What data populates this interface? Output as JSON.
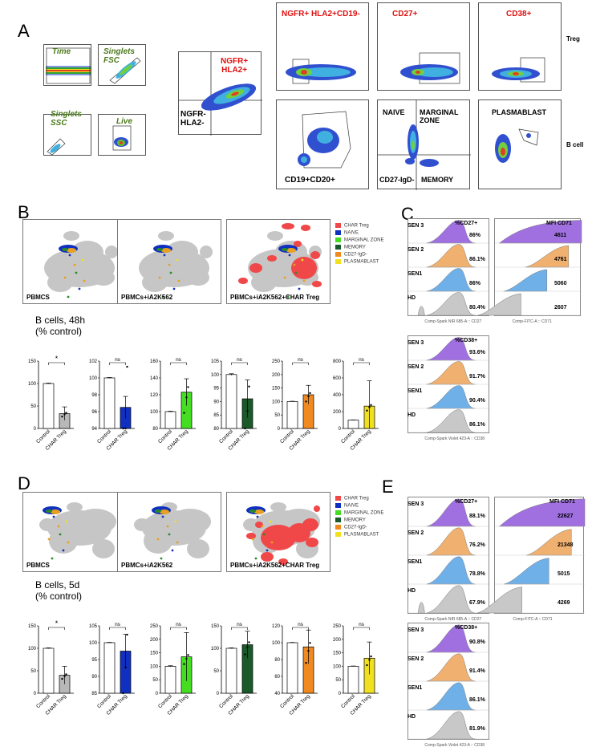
{
  "colors": {
    "purple": "#a070e0",
    "orange": "#f0b070",
    "blue": "#70b0e8",
    "gray": "#c8c8c8",
    "red": "#e01010",
    "green": "#44dd22",
    "darkgreen": "#1a5a2a",
    "dorange": "#f08a20",
    "yellow": "#f0e020"
  },
  "panelA": {
    "letter": "A",
    "gates": [
      "Time",
      "Singlets FSC",
      "Singlets SSC",
      "Live"
    ],
    "ngfr_pos": "NGFR+\nHLA2+",
    "ngfr_neg": "NGFR-\nHLA2-",
    "treg_titles": [
      "NGFR+ HLA2+CD19-",
      "CD27+",
      "CD38+"
    ],
    "bcell_labels": {
      "cd19": "CD19+CD20+",
      "naive": "NAIVE",
      "marginal": "MARGINAL\nZONE",
      "cd27igd": "CD27-IgD-",
      "memory": "MEMORY",
      "plasma": "PLASMABLAST"
    },
    "row_labels": [
      "Treg",
      "B cell"
    ]
  },
  "panelB": {
    "letter": "B",
    "umap_labels": [
      "PBMCS",
      "PBMCs+iA2K562",
      "PBMCs+iA2K562+CHAR Treg"
    ],
    "legend": [
      "CHAR Treg",
      "NAIVE",
      "MARGINAL ZONE",
      "MEMORY",
      "CD27-IgD-",
      "PLASMABLAST"
    ],
    "title": "B cells, 48h\n(% control)",
    "chart_data": [
      {
        "type": "bar",
        "categories": [
          "Control",
          "CHAR Treg"
        ],
        "values": [
          100,
          33
        ],
        "err": [
          1,
          15
        ],
        "ylim": [
          0,
          150
        ],
        "ticks": [
          0,
          50,
          100,
          150
        ],
        "sig": "*"
      },
      {
        "type": "bar",
        "categories": [
          "Control",
          "CHAR Treg"
        ],
        "values": [
          100,
          96.5
        ],
        "err": [
          0.05,
          1.3
        ],
        "ylim": [
          94,
          102
        ],
        "ticks": [
          94,
          96,
          98,
          100,
          102
        ],
        "sig": "ns"
      },
      {
        "type": "bar",
        "categories": [
          "Control",
          "CHAR Treg"
        ],
        "values": [
          100,
          123
        ],
        "err": [
          0.5,
          16
        ],
        "ylim": [
          80,
          160
        ],
        "ticks": [
          80,
          100,
          120,
          140,
          160
        ],
        "sig": "ns"
      },
      {
        "type": "bar",
        "categories": [
          "Control",
          "CHAR Treg"
        ],
        "values": [
          100,
          91
        ],
        "err": [
          0.3,
          7
        ],
        "ylim": [
          80,
          105
        ],
        "ticks": [
          80,
          85,
          90,
          95,
          100,
          105
        ],
        "sig": "ns"
      },
      {
        "type": "bar",
        "categories": [
          "Control",
          "CHAR Treg"
        ],
        "values": [
          100,
          125
        ],
        "err": [
          1,
          35
        ],
        "ylim": [
          0,
          250
        ],
        "ticks": [
          0,
          50,
          100,
          150,
          200,
          250
        ],
        "sig": "ns"
      },
      {
        "type": "bar",
        "categories": [
          "Control",
          "CHAR Treg"
        ],
        "values": [
          100,
          265
        ],
        "err": [
          2,
          300
        ],
        "ylim": [
          0,
          800
        ],
        "ticks": [
          0,
          200,
          400,
          600,
          800
        ],
        "sig": "ns"
      }
    ]
  },
  "panelC": {
    "letter": "C",
    "rows": [
      "SEN 3",
      "SEN 2",
      "SEN1",
      "HD"
    ],
    "cd27_title": "%CD27+",
    "cd27": [
      "86%",
      "86.1%",
      "86%",
      "80.4%"
    ],
    "cd71_title": "MFI CD71",
    "cd71": [
      "4611",
      "4761",
      "5060",
      "2607"
    ],
    "cd38_title": "%CD38+",
    "cd38": [
      "93.6%",
      "91.7%",
      "90.4%",
      "86.1%"
    ],
    "axis": [
      "Comp-Spark NIR 685-A :: CD27",
      "Comp-FITC-A :: CD71",
      "Comp-Spark Violet 423-A :: CD38"
    ]
  },
  "panelD": {
    "letter": "D",
    "umap_labels": [
      "PBMCS",
      "PBMCs+iA2K562",
      "PBMCs+iA2K562+CHAR Treg"
    ],
    "legend": [
      "CHAR Treg",
      "NAIVE",
      "MARGINAL ZONE",
      "MEMORY",
      "CD27-IgD-",
      "PLASMABLAST"
    ],
    "title": "B cells, 5d\n(% control)",
    "chart_data": [
      {
        "type": "bar",
        "categories": [
          "Control",
          "CHAR Treg"
        ],
        "values": [
          100,
          40
        ],
        "err": [
          1,
          20
        ],
        "ylim": [
          0,
          150
        ],
        "ticks": [
          0,
          50,
          100,
          150
        ],
        "sig": "*"
      },
      {
        "type": "bar",
        "categories": [
          "Control",
          "CHAR Treg"
        ],
        "values": [
          100,
          97.5
        ],
        "err": [
          0.1,
          5
        ],
        "ylim": [
          85,
          105
        ],
        "ticks": [
          85,
          90,
          95,
          100,
          105
        ],
        "sig": "ns"
      },
      {
        "type": "bar",
        "categories": [
          "Control",
          "CHAR Treg"
        ],
        "values": [
          100,
          135
        ],
        "err": [
          2,
          90
        ],
        "ylim": [
          0,
          250
        ],
        "ticks": [
          0,
          50,
          100,
          150,
          200,
          250
        ],
        "sig": "ns"
      },
      {
        "type": "bar",
        "categories": [
          "Control",
          "CHAR Treg"
        ],
        "values": [
          100,
          108
        ],
        "err": [
          1,
          30
        ],
        "ylim": [
          0,
          150
        ],
        "ticks": [
          0,
          50,
          100,
          150
        ],
        "sig": "ns"
      },
      {
        "type": "bar",
        "categories": [
          "Control",
          "CHAR Treg"
        ],
        "values": [
          100,
          95
        ],
        "err": [
          0.3,
          20
        ],
        "ylim": [
          40,
          120
        ],
        "ticks": [
          40,
          60,
          80,
          100,
          120
        ],
        "sig": "ns"
      },
      {
        "type": "bar",
        "categories": [
          "Control",
          "CHAR Treg"
        ],
        "values": [
          100,
          130
        ],
        "err": [
          1,
          60
        ],
        "ylim": [
          0,
          250
        ],
        "ticks": [
          0,
          50,
          100,
          150,
          200,
          250
        ],
        "sig": "ns"
      }
    ]
  },
  "panelE": {
    "letter": "E",
    "rows": [
      "SEN 3",
      "SEN 2",
      "SEN1",
      "HD"
    ],
    "cd27_title": "%CD27+",
    "cd27": [
      "88.1%",
      "76.2%",
      "78.8%",
      "67.9%"
    ],
    "cd71_title": "MFI CD71",
    "cd71": [
      "22627",
      "21348",
      "5015",
      "4269"
    ],
    "cd38_title": "%CD38+",
    "cd38": [
      "90.8%",
      "91.4%",
      "86.1%",
      "81.9%"
    ],
    "axis": [
      "Comp-Spark NIR 685-A :: CD27",
      "Comp-FITC-A :: CD71",
      "Comp-Spark Violet 423-A :: CD38"
    ]
  }
}
